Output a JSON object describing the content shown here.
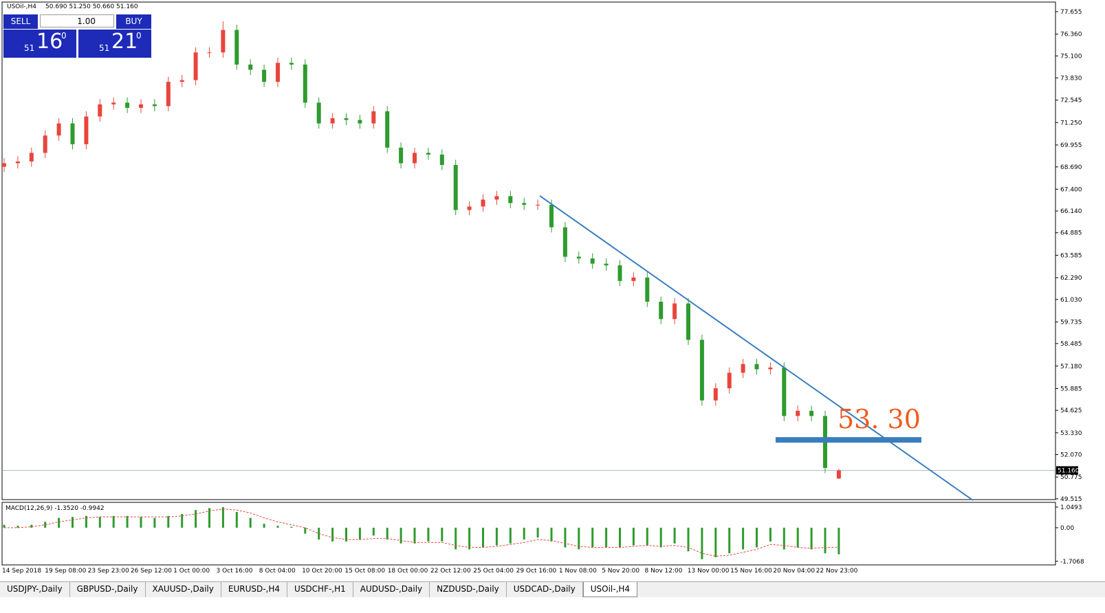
{
  "chart_data": [
    {
      "type": "candlestick",
      "title": "USOil-,H4",
      "subtitle": "50.690 51.250 50.660 51.160",
      "ylim": [
        49.47,
        78.21
      ],
      "yticks": [
        {
          "value": 77.655,
          "label": "77.655"
        },
        {
          "value": 76.36,
          "label": "76.360"
        },
        {
          "value": 75.1,
          "label": "75.100"
        },
        {
          "value": 73.83,
          "label": "73.830"
        },
        {
          "value": 72.545,
          "label": "72.545"
        },
        {
          "value": 71.25,
          "label": "71.250"
        },
        {
          "value": 69.955,
          "label": "69.955"
        },
        {
          "value": 68.69,
          "label": "68.690"
        },
        {
          "value": 67.4,
          "label": "67.400"
        },
        {
          "value": 66.14,
          "label": "66.140"
        },
        {
          "value": 64.885,
          "label": "64.885"
        },
        {
          "value": 63.585,
          "label": "63.585"
        },
        {
          "value": 62.29,
          "label": "62.290"
        },
        {
          "value": 61.03,
          "label": "61.030"
        },
        {
          "value": 59.735,
          "label": "59.735"
        },
        {
          "value": 58.485,
          "label": "58.485"
        },
        {
          "value": 57.18,
          "label": "57.180"
        },
        {
          "value": 55.885,
          "label": "55.885"
        },
        {
          "value": 54.625,
          "label": "54.625"
        },
        {
          "value": 53.33,
          "label": "53.330"
        },
        {
          "value": 52.07,
          "label": "52.070"
        },
        {
          "value": 50.775,
          "label": "50.775"
        },
        {
          "value": 49.515,
          "label": "49.515"
        }
      ],
      "xlabels": [
        "14 Sep 2018",
        "19 Sep 08:00",
        "23 Sep 23:00",
        "26 Sep 12:00",
        "1 Oct 00:00",
        "3 Oct 16:00",
        "8 Oct 04:00",
        "10 Oct 20:00",
        "15 Oct 08:00",
        "18 Oct 00:00",
        "22 Oct 12:00",
        "25 Oct 04:00",
        "29 Oct 16:00",
        "1 Nov 08:00",
        "5 Nov 20:00",
        "8 Nov 12:00",
        "13 Nov 00:00",
        "15 Nov 16:00",
        "20 Nov 04:00",
        "22 Nov 23:00"
      ],
      "up_color": "#e8453c",
      "down_color": "#2e9b2e",
      "open": [
        68.7,
        68.9,
        69.0,
        69.5,
        70.5,
        71.2,
        70.0,
        71.6,
        72.3,
        72.4,
        72.1,
        72.3,
        72.2,
        73.6,
        73.7,
        75.3,
        75.3,
        76.6,
        74.6,
        74.3,
        73.6,
        74.7,
        74.6,
        72.4,
        71.2,
        71.5,
        71.4,
        71.2,
        71.9,
        69.8,
        68.9,
        69.5,
        69.4,
        68.8,
        66.2,
        66.4,
        66.8,
        67.0,
        66.6,
        66.5,
        66.5,
        65.2,
        63.5,
        63.4,
        63.1,
        63.0,
        62.1,
        62.3,
        60.9,
        59.9,
        60.8,
        58.7,
        55.2,
        55.9,
        56.8,
        57.3,
        57.0,
        57.1,
        54.3,
        54.6,
        54.3,
        50.69
      ],
      "high": [
        69.2,
        69.3,
        69.8,
        70.8,
        71.5,
        71.5,
        71.9,
        72.6,
        72.7,
        72.7,
        72.6,
        72.6,
        73.9,
        74.0,
        75.6,
        75.6,
        77.1,
        76.9,
        74.9,
        74.6,
        75.0,
        75.0,
        74.9,
        72.7,
        71.8,
        71.8,
        71.7,
        72.2,
        72.2,
        70.1,
        69.8,
        69.8,
        69.7,
        69.1,
        66.7,
        67.1,
        67.3,
        67.3,
        66.9,
        66.8,
        66.8,
        65.5,
        63.8,
        63.7,
        63.4,
        63.3,
        62.6,
        62.6,
        61.2,
        61.1,
        61.1,
        59.0,
        56.2,
        57.1,
        57.6,
        57.6,
        57.4,
        57.4,
        54.9,
        54.9,
        54.6,
        51.25
      ],
      "low": [
        68.4,
        68.6,
        68.7,
        69.2,
        70.2,
        69.7,
        69.7,
        71.3,
        72.0,
        71.8,
        71.8,
        71.9,
        71.9,
        73.3,
        73.4,
        75.0,
        75.0,
        74.3,
        74.0,
        73.3,
        73.3,
        74.3,
        72.1,
        70.9,
        70.9,
        71.1,
        70.9,
        70.9,
        69.5,
        68.6,
        68.6,
        69.1,
        68.5,
        65.9,
        65.9,
        66.1,
        66.5,
        66.3,
        66.2,
        66.2,
        64.9,
        63.2,
        63.1,
        62.8,
        62.7,
        61.8,
        61.8,
        60.6,
        59.6,
        59.6,
        58.4,
        54.9,
        54.9,
        55.6,
        56.5,
        56.7,
        56.7,
        54.0,
        54.0,
        54.0,
        51.0,
        50.66
      ],
      "close": [
        68.9,
        69.0,
        69.5,
        70.5,
        71.2,
        70.0,
        71.6,
        72.3,
        72.4,
        72.1,
        72.3,
        72.2,
        73.6,
        73.7,
        75.3,
        75.3,
        76.6,
        74.6,
        74.3,
        73.6,
        74.7,
        74.6,
        72.4,
        71.2,
        71.5,
        71.4,
        71.2,
        71.9,
        69.8,
        68.9,
        69.5,
        69.4,
        68.8,
        66.2,
        66.4,
        66.8,
        67.0,
        66.6,
        66.5,
        66.5,
        65.2,
        63.5,
        63.4,
        63.1,
        63.0,
        62.1,
        62.3,
        60.9,
        59.9,
        60.8,
        58.7,
        55.2,
        55.9,
        56.8,
        57.3,
        57.0,
        57.1,
        54.3,
        54.6,
        54.3,
        51.3,
        51.16
      ],
      "current_price": {
        "value": 51.16,
        "label": "51.160"
      },
      "trendline": {
        "values": [
          67.02,
          49.43
        ],
        "color": "#3a7dbd"
      },
      "level": {
        "value": 52.92,
        "color": "#3a7dbd"
      },
      "annotation": "53. 30"
    },
    {
      "type": "macd",
      "title": "MACD(12,26,9) -1.3520 -0.9942",
      "ylim": [
        -1.89,
        1.29
      ],
      "yticks": [
        {
          "value": 1.0493,
          "label": "1.0493"
        },
        {
          "value": 0,
          "label": "0.00"
        },
        {
          "value": -1.7068,
          "label": "-1.7068"
        }
      ],
      "series": [
        {
          "color": "#2e9b2e",
          "values": [
            0.15,
            0.1,
            0.15,
            0.3,
            0.5,
            0.55,
            0.6,
            0.55,
            0.6,
            0.6,
            0.55,
            0.5,
            0.6,
            0.7,
            0.9,
            1.0,
            1.05,
            0.8,
            0.5,
            0.2,
            0.1,
            0.05,
            -0.3,
            -0.6,
            -0.7,
            -0.7,
            -0.6,
            -0.4,
            -0.6,
            -0.8,
            -0.8,
            -0.7,
            -0.7,
            -1.1,
            -1.1,
            -1.0,
            -0.9,
            -0.8,
            -0.6,
            -0.5,
            -0.7,
            -1.0,
            -1.1,
            -1.0,
            -1.0,
            -1.0,
            -0.9,
            -0.9,
            -1.0,
            -0.8,
            -1.2,
            -1.6,
            -1.5,
            -1.3,
            -1.1,
            -1.0,
            -0.7,
            -1.1,
            -1.0,
            -1.1,
            -1.3,
            -1.35
          ]
        },
        {
          "color": "#e8453c",
          "values": [
            0.0,
            0.0,
            0.05,
            0.15,
            0.3,
            0.4,
            0.5,
            0.55,
            0.55,
            0.55,
            0.55,
            0.55,
            0.55,
            0.6,
            0.7,
            0.85,
            0.95,
            0.9,
            0.75,
            0.5,
            0.3,
            0.15,
            0.0,
            -0.3,
            -0.5,
            -0.6,
            -0.6,
            -0.55,
            -0.55,
            -0.65,
            -0.75,
            -0.75,
            -0.75,
            -0.9,
            -1.0,
            -1.0,
            -0.95,
            -0.85,
            -0.75,
            -0.6,
            -0.65,
            -0.8,
            -0.95,
            -1.0,
            -1.0,
            -1.0,
            -0.95,
            -0.9,
            -0.95,
            -0.9,
            -1.0,
            -1.3,
            -1.45,
            -1.4,
            -1.25,
            -1.1,
            -0.85,
            -0.9,
            -1.0,
            -1.05,
            -1.0,
            -0.99
          ]
        }
      ]
    }
  ],
  "trade_panel": {
    "sell": "SELL",
    "buy": "BUY",
    "lot": "1.00",
    "sell_small": "51",
    "sell_big": "16",
    "sell_sup": "0",
    "buy_small": "51",
    "buy_big": "21",
    "buy_sup": "0"
  },
  "tabs": [
    "USDJPY-,Daily",
    "GBPUSD-,Daily",
    "XAUUSD-,Daily",
    "EURUSD-,H4",
    "USDCHF-,H1",
    "AUDUSD-,Daily",
    "NZDUSD-,Daily",
    "USDCAD-,Daily",
    "USOil-,H4"
  ]
}
